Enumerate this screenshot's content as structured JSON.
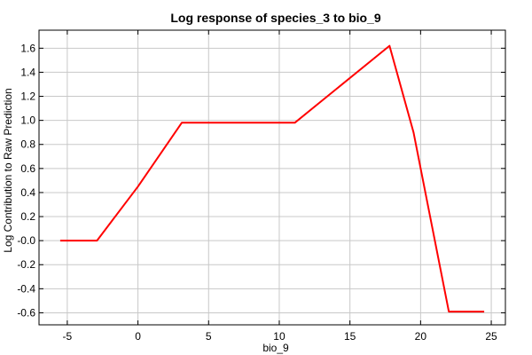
{
  "chart_data": {
    "type": "line",
    "title": "Log response of species_3 to bio_9",
    "xlabel": "bio_9",
    "ylabel": "Log Contribution to Raw Prediction",
    "xlim": [
      -7,
      26
    ],
    "ylim": [
      -0.7,
      1.75
    ],
    "grid": true,
    "x_ticks": [
      -5,
      0,
      5,
      10,
      15,
      20,
      25
    ],
    "x_tick_labels": [
      "-5",
      "0",
      "5",
      "10",
      "15",
      "20",
      "25"
    ],
    "y_ticks": [
      -0.6,
      -0.4,
      -0.2,
      0.0,
      0.2,
      0.4,
      0.6,
      0.8,
      1.0,
      1.2,
      1.4,
      1.6
    ],
    "y_tick_labels": [
      "-0.6",
      "-0.4",
      "-0.2",
      "-0.0",
      "0.2",
      "0.4",
      "0.6",
      "0.8",
      "1.0",
      "1.2",
      "1.4",
      "1.6"
    ],
    "series": [
      {
        "color": "#ff0000",
        "x": [
          -5.5,
          -2.9,
          0,
          3.1,
          11.1,
          17.8,
          19.5,
          22.0,
          24.5
        ],
        "y": [
          0.0,
          0.0,
          0.45,
          0.98,
          0.98,
          1.62,
          0.9,
          -0.59,
          -0.59
        ]
      }
    ]
  }
}
